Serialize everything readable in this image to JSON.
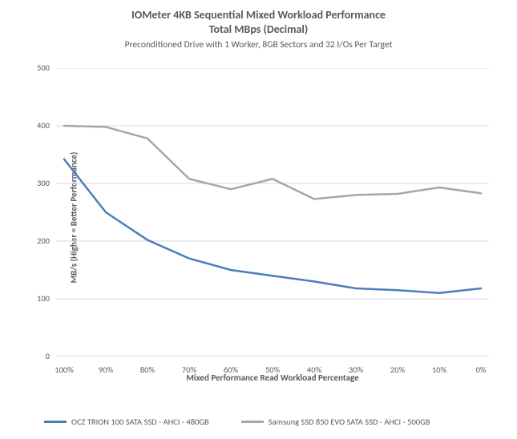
{
  "chart": {
    "type": "line",
    "title1": "IOMeter 4KB Sequential Mixed Workload Performance",
    "title2": "Total MBps (Decimal)",
    "subtitle": "Preconditioned Drive with 1 Worker, 8GB Sectors and 32 I/Os Per Target",
    "title_fontsize": 14,
    "subtitle_fontsize": 11.5,
    "title_color": "#595959",
    "background_color": "#ffffff",
    "ylabel": "MB/s (Higher = Better Performance)",
    "xlabel": "Mixed Performance Read Workload Percentage",
    "axis_label_fontsize": 11,
    "tick_fontsize": 10.5,
    "tick_color": "#595959",
    "ylim": [
      0,
      500
    ],
    "ytick_step": 100,
    "yticks": [
      0,
      100,
      200,
      300,
      400,
      500
    ],
    "x_categories": [
      "100%",
      "90%",
      "80%",
      "70%",
      "60%",
      "50%",
      "40%",
      "30%",
      "20%",
      "10%",
      "0%"
    ],
    "gridline_color": "#d9d9d9",
    "grid_on": true,
    "grid_horizontal_only": true,
    "axis_line_color": "#bfbfbf",
    "line_width": 2.5,
    "series": [
      {
        "name": "OCZ TRION 100 SATA SSD - AHCI - 480GB",
        "color": "#4a7ebb",
        "values": [
          342,
          250,
          202,
          170,
          150,
          140,
          130,
          118,
          115,
          110,
          118
        ]
      },
      {
        "name": "Samsung SSD 850 EVO SATA SSD - AHCI - 500GB",
        "color": "#a6a6a6",
        "values": [
          400,
          398,
          378,
          308,
          290,
          308,
          273,
          280,
          282,
          293,
          283
        ]
      }
    ],
    "legend_position": "bottom"
  }
}
